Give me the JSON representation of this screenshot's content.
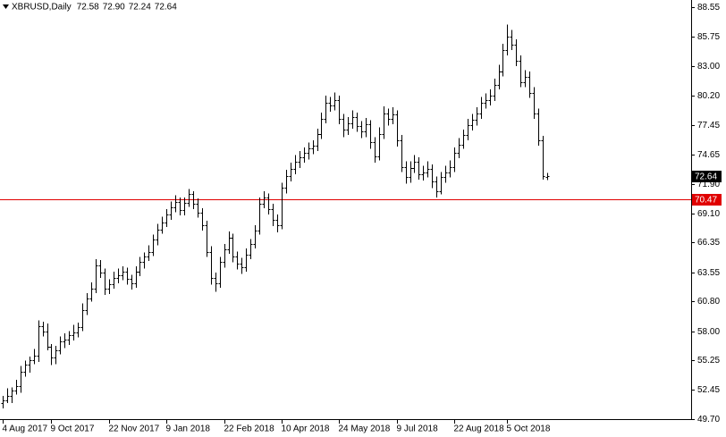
{
  "chart_data": {
    "type": "ohlc",
    "symbol": "XBRUSD,Daily",
    "last_bar_labels": [
      "72.58",
      "72.90",
      "72.24",
      "72.64"
    ],
    "color": "#000000",
    "ohlc": [
      [
        51.2,
        51.9,
        50.7,
        51.5
      ],
      [
        51.5,
        52.6,
        51.2,
        51.9
      ],
      [
        51.9,
        52.7,
        51.2,
        52.4
      ],
      [
        52.4,
        53.4,
        52.0,
        52.8
      ],
      [
        52.8,
        54.7,
        52.2,
        54.2
      ],
      [
        54.2,
        55.2,
        53.7,
        54.8
      ],
      [
        54.8,
        55.6,
        54.1,
        55.3
      ],
      [
        55.3,
        56.3,
        54.9,
        55.7
      ],
      [
        55.7,
        59.0,
        55.1,
        58.5
      ],
      [
        58.5,
        58.9,
        57.5,
        58.0
      ],
      [
        58.0,
        58.7,
        56.2,
        56.5
      ],
      [
        56.5,
        56.8,
        54.8,
        55.5
      ],
      [
        55.5,
        56.6,
        54.9,
        56.2
      ],
      [
        56.2,
        57.5,
        55.8,
        57.0
      ],
      [
        57.0,
        57.8,
        56.4,
        57.2
      ],
      [
        57.2,
        58.0,
        56.7,
        57.6
      ],
      [
        57.6,
        58.6,
        57.1,
        57.9
      ],
      [
        57.9,
        58.8,
        57.4,
        58.4
      ],
      [
        58.4,
        60.6,
        58.0,
        60.0
      ],
      [
        60.0,
        61.6,
        59.5,
        61.1
      ],
      [
        61.1,
        62.6,
        60.8,
        62.0
      ],
      [
        62.0,
        64.8,
        61.6,
        64.2
      ],
      [
        64.2,
        64.7,
        63.0,
        63.5
      ],
      [
        63.5,
        63.9,
        61.4,
        62.0
      ],
      [
        62.0,
        62.9,
        61.5,
        62.4
      ],
      [
        62.4,
        63.6,
        62.0,
        63.0
      ],
      [
        63.0,
        63.9,
        62.5,
        63.3
      ],
      [
        63.3,
        64.1,
        62.8,
        63.6
      ],
      [
        63.6,
        64.0,
        62.4,
        62.9
      ],
      [
        62.9,
        63.3,
        61.9,
        62.5
      ],
      [
        62.5,
        64.1,
        62.1,
        63.6
      ],
      [
        63.6,
        65.0,
        63.2,
        64.5
      ],
      [
        64.5,
        65.4,
        63.9,
        65.0
      ],
      [
        65.0,
        66.1,
        64.6,
        65.5
      ],
      [
        65.5,
        67.1,
        65.1,
        66.6
      ],
      [
        66.6,
        68.1,
        66.1,
        67.6
      ],
      [
        67.6,
        68.8,
        67.2,
        68.2
      ],
      [
        68.2,
        69.5,
        67.8,
        69.0
      ],
      [
        69.0,
        70.2,
        68.5,
        69.7
      ],
      [
        69.7,
        70.8,
        69.2,
        70.2
      ],
      [
        70.2,
        70.6,
        68.9,
        69.4
      ],
      [
        69.4,
        70.6,
        68.9,
        70.1
      ],
      [
        70.1,
        71.4,
        69.7,
        70.9
      ],
      [
        70.9,
        71.2,
        69.5,
        70.0
      ],
      [
        70.0,
        70.5,
        68.7,
        69.2
      ],
      [
        69.2,
        69.6,
        67.5,
        68.0
      ],
      [
        68.0,
        68.4,
        65.0,
        65.5
      ],
      [
        65.5,
        66.0,
        62.4,
        63.0
      ],
      [
        63.0,
        63.5,
        61.7,
        62.5
      ],
      [
        62.5,
        65.0,
        62.1,
        64.5
      ],
      [
        64.5,
        66.2,
        64.0,
        65.7
      ],
      [
        65.7,
        67.4,
        65.3,
        66.8
      ],
      [
        66.8,
        67.2,
        64.5,
        65.0
      ],
      [
        65.0,
        65.5,
        63.8,
        64.4
      ],
      [
        64.4,
        64.9,
        63.4,
        64.0
      ],
      [
        64.0,
        65.8,
        63.6,
        65.2
      ],
      [
        65.2,
        66.7,
        64.8,
        66.2
      ],
      [
        66.2,
        68.0,
        65.8,
        67.5
      ],
      [
        67.5,
        70.6,
        67.1,
        70.0
      ],
      [
        70.0,
        71.2,
        69.6,
        70.6
      ],
      [
        70.6,
        71.0,
        69.0,
        69.5
      ],
      [
        69.5,
        70.0,
        67.9,
        68.5
      ],
      [
        68.5,
        69.0,
        67.3,
        68.0
      ],
      [
        68.0,
        72.0,
        67.6,
        71.5
      ],
      [
        71.5,
        73.2,
        71.0,
        72.6
      ],
      [
        72.6,
        73.9,
        72.1,
        73.3
      ],
      [
        73.3,
        74.6,
        72.8,
        74.0
      ],
      [
        74.0,
        75.0,
        73.4,
        74.4
      ],
      [
        74.4,
        75.3,
        73.9,
        74.8
      ],
      [
        74.8,
        75.8,
        74.2,
        75.2
      ],
      [
        75.2,
        76.0,
        74.7,
        75.5
      ],
      [
        75.5,
        77.1,
        75.0,
        76.6
      ],
      [
        76.6,
        78.6,
        76.1,
        78.0
      ],
      [
        78.0,
        80.2,
        77.6,
        79.5
      ],
      [
        79.5,
        80.1,
        78.7,
        79.3
      ],
      [
        79.3,
        80.5,
        78.8,
        79.8
      ],
      [
        79.8,
        80.2,
        77.5,
        78.0
      ],
      [
        78.0,
        78.5,
        76.3,
        77.0
      ],
      [
        77.0,
        78.2,
        76.5,
        77.6
      ],
      [
        77.6,
        78.8,
        77.1,
        78.2
      ],
      [
        78.2,
        78.6,
        76.8,
        77.3
      ],
      [
        77.3,
        77.8,
        76.2,
        76.8
      ],
      [
        76.8,
        78.1,
        76.3,
        77.5
      ],
      [
        77.5,
        77.9,
        75.2,
        75.8
      ],
      [
        75.8,
        76.3,
        73.9,
        74.5
      ],
      [
        74.5,
        77.2,
        74.1,
        76.6
      ],
      [
        76.6,
        79.2,
        76.1,
        78.5
      ],
      [
        78.5,
        79.0,
        77.4,
        78.0
      ],
      [
        78.0,
        79.1,
        77.5,
        78.4
      ],
      [
        78.4,
        78.8,
        75.4,
        76.0
      ],
      [
        76.0,
        76.5,
        73.0,
        73.5
      ],
      [
        73.5,
        74.0,
        71.9,
        72.5
      ],
      [
        72.5,
        74.0,
        72.0,
        73.4
      ],
      [
        73.4,
        74.6,
        72.9,
        74.0
      ],
      [
        74.0,
        74.4,
        72.3,
        72.8
      ],
      [
        72.8,
        73.6,
        72.2,
        73.0
      ],
      [
        73.0,
        74.0,
        72.5,
        73.3
      ],
      [
        73.3,
        73.7,
        71.5,
        72.1
      ],
      [
        72.1,
        72.6,
        70.6,
        71.2
      ],
      [
        71.2,
        73.0,
        70.9,
        72.5
      ],
      [
        72.5,
        73.6,
        72.0,
        73.0
      ],
      [
        73.0,
        74.1,
        72.5,
        73.5
      ],
      [
        73.5,
        75.3,
        73.0,
        74.8
      ],
      [
        74.8,
        76.2,
        74.3,
        75.6
      ],
      [
        75.6,
        77.0,
        75.2,
        76.5
      ],
      [
        76.5,
        78.0,
        76.0,
        77.4
      ],
      [
        77.4,
        78.5,
        76.9,
        77.9
      ],
      [
        77.9,
        79.1,
        77.4,
        78.5
      ],
      [
        78.5,
        80.1,
        78.0,
        79.5
      ],
      [
        79.5,
        80.4,
        79.0,
        79.8
      ],
      [
        79.8,
        80.8,
        79.3,
        80.2
      ],
      [
        80.2,
        81.8,
        79.7,
        81.2
      ],
      [
        81.2,
        83.1,
        80.8,
        82.5
      ],
      [
        82.5,
        85.1,
        82.0,
        84.5
      ],
      [
        84.5,
        86.9,
        84.0,
        85.8
      ],
      [
        85.8,
        86.4,
        84.5,
        85.0
      ],
      [
        85.0,
        85.5,
        83.0,
        83.5
      ],
      [
        83.5,
        84.0,
        81.0,
        81.5
      ],
      [
        81.5,
        82.6,
        81.0,
        82.0
      ],
      [
        82.0,
        82.5,
        80.0,
        80.5
      ],
      [
        80.5,
        81.0,
        78.0,
        78.5
      ],
      [
        78.5,
        79.0,
        75.5,
        76.0
      ],
      [
        76.0,
        76.4,
        72.3,
        72.6
      ],
      [
        72.58,
        72.9,
        72.24,
        72.64
      ]
    ],
    "categories": [
      "4 Aug 2017",
      null,
      null,
      null,
      null,
      null,
      null,
      null,
      null,
      null,
      null,
      "9 Oct 2017",
      null,
      null,
      null,
      null,
      null,
      null,
      null,
      null,
      null,
      null,
      null,
      null,
      "22 Nov 2017",
      null,
      null,
      null,
      null,
      null,
      null,
      null,
      null,
      null,
      null,
      null,
      null,
      "9 Jan 2018",
      null,
      null,
      null,
      null,
      null,
      null,
      null,
      null,
      null,
      null,
      null,
      null,
      "22 Feb 2018",
      null,
      null,
      null,
      null,
      null,
      null,
      null,
      null,
      null,
      null,
      null,
      null,
      "10 Apr 2018",
      null,
      null,
      null,
      null,
      null,
      null,
      null,
      null,
      null,
      null,
      null,
      null,
      "24 May 2018",
      null,
      null,
      null,
      null,
      null,
      null,
      null,
      null,
      null,
      null,
      null,
      null,
      "9 Jul 2018",
      null,
      null,
      null,
      null,
      null,
      null,
      null,
      null,
      null,
      null,
      null,
      null,
      "22 Aug 2018",
      null,
      null,
      null,
      null,
      null,
      null,
      null,
      null,
      null,
      null,
      null,
      "5 Oct 2018",
      null,
      null,
      null,
      null,
      null,
      null,
      null,
      null,
      null
    ],
    "ylim": [
      49.7,
      88.55
    ],
    "yticks": [
      {
        "value": 88.55,
        "label": "88.55"
      },
      {
        "value": 85.75,
        "label": "85.75"
      },
      {
        "value": 83,
        "label": "83.00"
      },
      {
        "value": 80.2,
        "label": "80.20"
      },
      {
        "value": 77.45,
        "label": "77.45"
      },
      {
        "value": 74.65,
        "label": "74.65"
      },
      {
        "value": 71.9,
        "label": "71.90"
      },
      {
        "value": 69.1,
        "label": "69.10"
      },
      {
        "value": 66.35,
        "label": "66.35"
      },
      {
        "value": 63.55,
        "label": "63.55"
      },
      {
        "value": 60.8,
        "label": "60.80"
      },
      {
        "value": 58,
        "label": "58.00"
      },
      {
        "value": 55.25,
        "label": "55.25"
      },
      {
        "value": 52.45,
        "label": "52.45"
      },
      {
        "value": 49.7,
        "label": "49.70"
      }
    ],
    "current_price_label": "72.64",
    "hline": {
      "value": 70.47,
      "color": "#e00000"
    }
  }
}
